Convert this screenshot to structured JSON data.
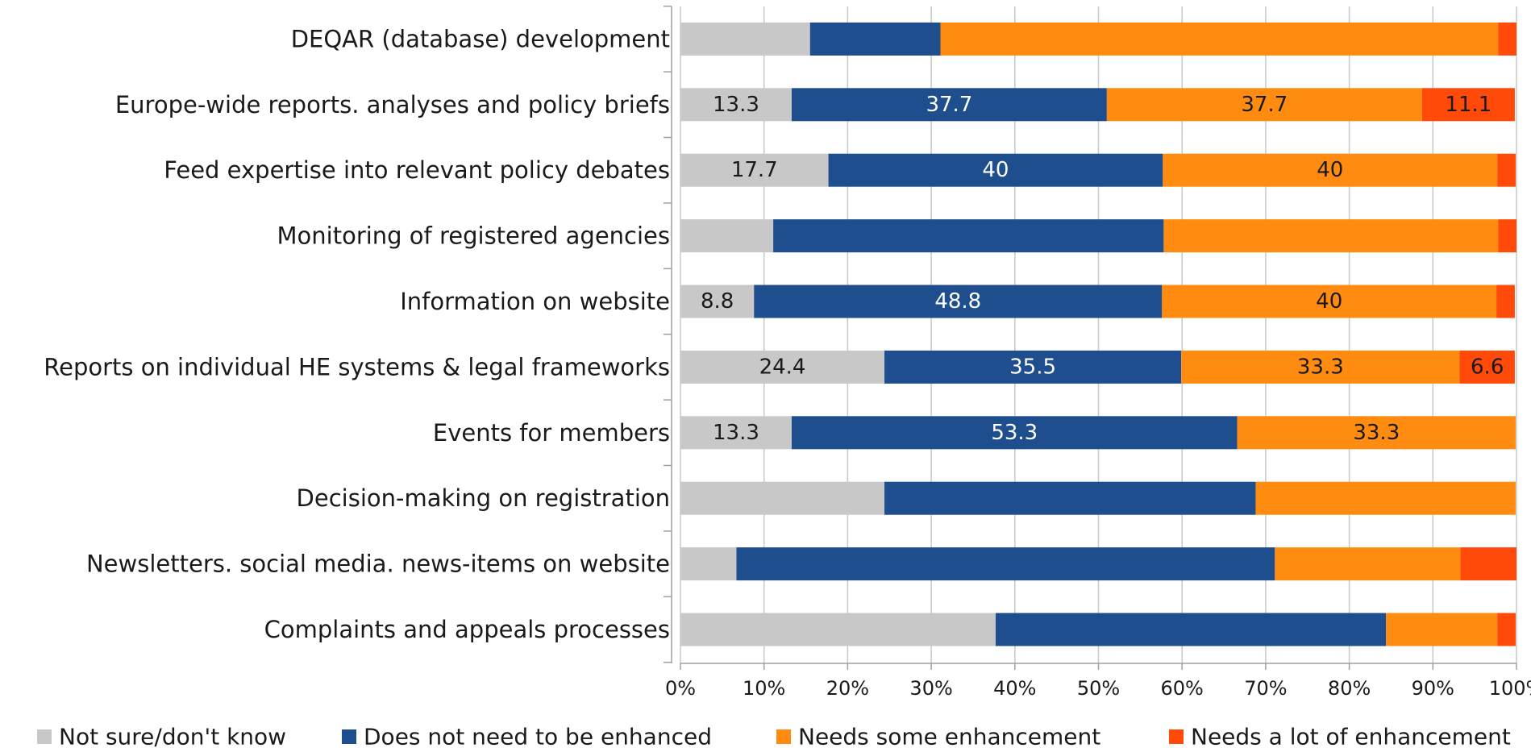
{
  "chart_data": {
    "type": "stacked-barh",
    "categories": [
      "DEQAR (database) development",
      "Europe-wide reports. analyses and policy briefs",
      "Feed expertise into relevant policy debates",
      "Monitoring of registered agencies",
      "Information on website",
      "Reports on individual HE systems & legal frameworks",
      "Events for members",
      "Decision-making on registration",
      "Newsletters. social media. news-items on website",
      "Complaints and appeals processes"
    ],
    "series": [
      {
        "name": "Not sure/don't know",
        "color": "#c8c8c8",
        "label_color": "#1a1a1a",
        "values": [
          15.5,
          13.3,
          17.7,
          11.1,
          8.8,
          24.4,
          13.3,
          24.4,
          6.7,
          37.7
        ],
        "value_labels": [
          null,
          "13.3",
          "17.7",
          null,
          "8.8",
          "24.4",
          "13.3",
          null,
          null,
          null
        ]
      },
      {
        "name": "Does not need to be enhanced",
        "color": "#1f4e8f",
        "label_color": "#ffffff",
        "values": [
          15.6,
          37.7,
          40,
          46.7,
          48.8,
          35.5,
          53.3,
          44.4,
          64.4,
          46.7
        ],
        "value_labels": [
          null,
          "37.7",
          "40",
          null,
          "48.8",
          "35.5",
          "53.3",
          null,
          null,
          null
        ]
      },
      {
        "name": "Needs some enhancement",
        "color": "#ff8c10",
        "label_color": "#1a1a1a",
        "values": [
          66.7,
          37.7,
          40,
          40,
          40,
          33.3,
          33.3,
          31.1,
          22.2,
          13.3
        ],
        "value_labels": [
          null,
          "37.7",
          "40",
          null,
          "40",
          "33.3",
          "33.3",
          null,
          null,
          null
        ]
      },
      {
        "name": "Needs a lot of enhancement",
        "color": "#ff4a0a",
        "label_color": "#1a1a1a",
        "values": [
          2.2,
          11.1,
          2.2,
          2.2,
          2.2,
          6.6,
          0,
          0,
          6.7,
          2.2
        ],
        "value_labels": [
          null,
          "11.1",
          null,
          null,
          null,
          "6.6",
          null,
          null,
          null,
          null
        ]
      }
    ],
    "xlim": [
      0,
      100
    ],
    "xticks": [
      {
        "value": 0,
        "label": "0%"
      },
      {
        "value": 10,
        "label": "10%"
      },
      {
        "value": 20,
        "label": "20%"
      },
      {
        "value": 30,
        "label": "30%"
      },
      {
        "value": 40,
        "label": "40%"
      },
      {
        "value": 50,
        "label": "50%"
      },
      {
        "value": 60,
        "label": "60%"
      },
      {
        "value": 70,
        "label": "70%"
      },
      {
        "value": 80,
        "label": "80%"
      },
      {
        "value": 90,
        "label": "90%"
      },
      {
        "value": 100,
        "label": "100%"
      }
    ],
    "grid": true,
    "legend": "bottom"
  }
}
